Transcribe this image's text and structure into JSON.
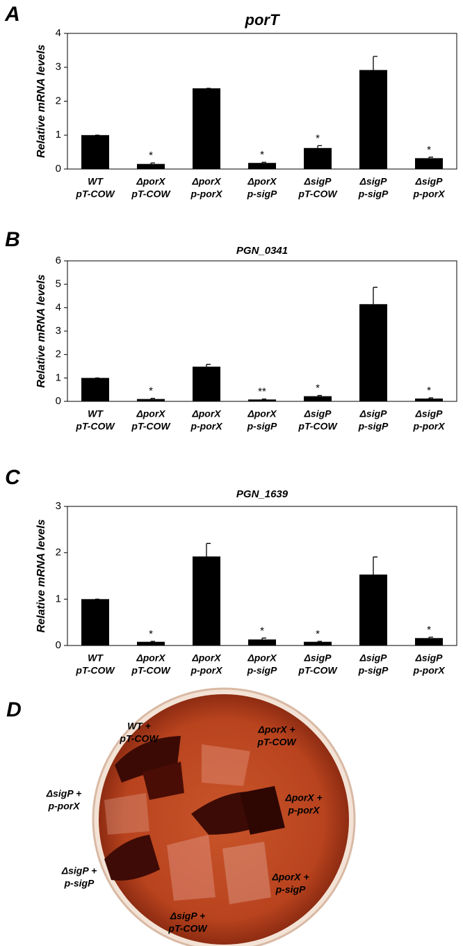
{
  "chart_data": [
    {
      "type": "bar",
      "panel": "A",
      "title": "porT",
      "ylabel": "Relative mRNA levels",
      "color": "#000000",
      "categories": [
        [
          "WT",
          "pT-COW"
        ],
        [
          "ΔporX",
          "pT-COW"
        ],
        [
          "ΔporX",
          "p-porX"
        ],
        [
          "ΔporX",
          "p-sigP"
        ],
        [
          "ΔsigP",
          "pT-COW"
        ],
        [
          "ΔsigP",
          "p-sigP"
        ],
        [
          "ΔsigP",
          "p-porX"
        ]
      ],
      "values": [
        1.0,
        0.15,
        2.38,
        0.18,
        0.62,
        2.92,
        0.32
      ],
      "errors": [
        0,
        0.03,
        0,
        0.02,
        0.07,
        0.4,
        0.03
      ],
      "significance": [
        null,
        "*",
        null,
        "*",
        "*",
        null,
        "*"
      ],
      "ylim": [
        0,
        4
      ],
      "yticks": [
        0,
        1,
        2,
        3,
        4
      ]
    },
    {
      "type": "bar",
      "panel": "B",
      "title": "PGN_0341",
      "ylabel": "Relative mRNA levels",
      "color": "#000000",
      "categories": [
        [
          "WT",
          "pT-COW"
        ],
        [
          "ΔporX",
          "pT-COW"
        ],
        [
          "ΔporX",
          "p-porX"
        ],
        [
          "ΔporX",
          "p-sigP"
        ],
        [
          "ΔsigP",
          "pT-COW"
        ],
        [
          "ΔsigP",
          "p-sigP"
        ],
        [
          "ΔsigP",
          "p-porX"
        ]
      ],
      "values": [
        1.0,
        0.1,
        1.48,
        0.08,
        0.22,
        4.15,
        0.12
      ],
      "errors": [
        0,
        0.03,
        0.1,
        0.02,
        0.03,
        0.72,
        0.03
      ],
      "significance": [
        null,
        "*",
        null,
        "**",
        "*",
        null,
        "*"
      ],
      "ylim": [
        0,
        6
      ],
      "yticks": [
        0,
        1,
        2,
        3,
        4,
        5,
        6
      ]
    },
    {
      "type": "bar",
      "panel": "C",
      "title": "PGN_1639",
      "ylabel": "Relative mRNA levels",
      "color": "#000000",
      "categories": [
        [
          "WT",
          "pT-COW"
        ],
        [
          "ΔporX",
          "pT-COW"
        ],
        [
          "ΔporX",
          "p-porX"
        ],
        [
          "ΔporX",
          "p-sigP"
        ],
        [
          "ΔsigP",
          "pT-COW"
        ],
        [
          "ΔsigP",
          "p-sigP"
        ],
        [
          "ΔsigP",
          "p-porX"
        ]
      ],
      "values": [
        1.0,
        0.08,
        1.92,
        0.13,
        0.08,
        1.53,
        0.16
      ],
      "errors": [
        0,
        0.01,
        0.28,
        0.03,
        0.01,
        0.38,
        0.02
      ],
      "significance": [
        null,
        "*",
        null,
        "*",
        "*",
        null,
        "*"
      ],
      "ylim": [
        0,
        3
      ],
      "yticks": [
        0,
        1,
        2,
        3
      ]
    }
  ],
  "plate": {
    "panel": "D",
    "labels": [
      [
        "WT +",
        "pT-COW"
      ],
      [
        "ΔporX +",
        "pT-COW"
      ],
      [
        "ΔsigP +",
        "p-porX"
      ],
      [
        "ΔporX +",
        "p-porX"
      ],
      [
        "ΔsigP +",
        "p-sigP"
      ],
      [
        "ΔporX +",
        "p-sigP"
      ],
      [
        "ΔsigP +",
        "pT-COW"
      ]
    ]
  }
}
